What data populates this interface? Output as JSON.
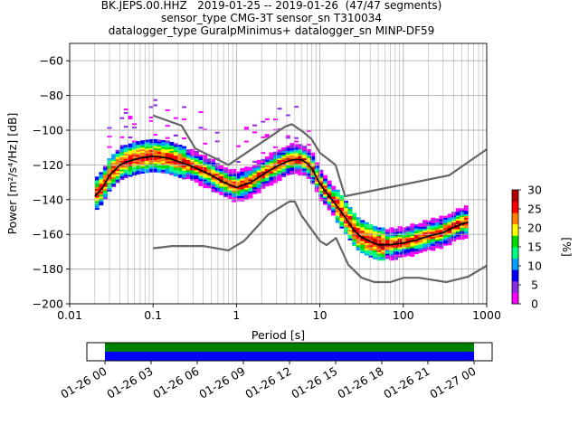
{
  "title": {
    "line1": "BK.JEPS.00.HHZ   2019-01-25 -- 2019-01-26  (47/47 segments)",
    "line2": "sensor_type CMG-3T sensor_sn T310034",
    "line3": "datalogger_type GuralpMinimus+ datalogger_sn MINP-DF59"
  },
  "chart_data": {
    "type": "heatmap",
    "xlabel": "Period [s]",
    "ylabel": "Power [m²/s⁴/Hz] [dB]",
    "x_scale": "log",
    "xlim": [
      0.01,
      1000
    ],
    "ylim": [
      -200,
      -50
    ],
    "x_tick_labels": [
      "0.01",
      "0.1",
      "1",
      "10",
      "100",
      "1000"
    ],
    "y_ticks": [
      -200,
      -180,
      -160,
      -140,
      -120,
      -100,
      -80,
      -60
    ],
    "grid": true,
    "colorbar": {
      "label": "[%]",
      "range": [
        0,
        30
      ],
      "ticks": [
        0,
        5,
        10,
        15,
        20,
        25,
        30
      ]
    },
    "series": [
      {
        "name": "",
        "role": "mean PSD",
        "color": "#000000",
        "points": [
          [
            0.02,
            -138
          ],
          [
            0.025,
            -133
          ],
          [
            0.03,
            -126
          ],
          [
            0.04,
            -120
          ],
          [
            0.05,
            -118
          ],
          [
            0.07,
            -116
          ],
          [
            0.1,
            -115
          ],
          [
            0.15,
            -116
          ],
          [
            0.2,
            -118
          ],
          [
            0.3,
            -121
          ],
          [
            0.5,
            -126
          ],
          [
            0.7,
            -130
          ],
          [
            1,
            -133
          ],
          [
            1.5,
            -130
          ],
          [
            2,
            -126
          ],
          [
            3,
            -121
          ],
          [
            4,
            -118
          ],
          [
            5,
            -117
          ],
          [
            6,
            -117
          ],
          [
            7,
            -119
          ],
          [
            8,
            -122
          ],
          [
            10,
            -131
          ],
          [
            15,
            -142
          ],
          [
            20,
            -150
          ],
          [
            25,
            -157
          ],
          [
            30,
            -161
          ],
          [
            40,
            -164
          ],
          [
            50,
            -166
          ],
          [
            70,
            -166
          ],
          [
            100,
            -165
          ],
          [
            150,
            -163
          ],
          [
            200,
            -161
          ],
          [
            300,
            -159
          ],
          [
            400,
            -156
          ],
          [
            500,
            -154
          ],
          [
            600,
            -153
          ]
        ]
      },
      {
        "name": "",
        "role": "New High Noise Model",
        "color": "#666666",
        "points": [
          [
            0.1,
            -91.5
          ],
          [
            0.22,
            -97.4
          ],
          [
            0.32,
            -110.5
          ],
          [
            0.8,
            -120
          ],
          [
            3.8,
            -98
          ],
          [
            4.6,
            -96.5
          ],
          [
            6.3,
            -101
          ],
          [
            7.9,
            -105
          ],
          [
            10,
            -113
          ],
          [
            15.4,
            -120
          ],
          [
            20,
            -138
          ],
          [
            354.8,
            -126
          ],
          [
            1000,
            -111
          ]
        ]
      },
      {
        "name": "",
        "role": "New Low Noise Model",
        "color": "#666666",
        "points": [
          [
            0.1,
            -168
          ],
          [
            0.17,
            -166.7
          ],
          [
            0.4,
            -166.7
          ],
          [
            0.8,
            -169.2
          ],
          [
            1.24,
            -163.7
          ],
          [
            2.4,
            -148.6
          ],
          [
            4.3,
            -141.1
          ],
          [
            5,
            -141.1
          ],
          [
            6,
            -149
          ],
          [
            10,
            -163.8
          ],
          [
            12,
            -166.2
          ],
          [
            15.6,
            -162.1
          ],
          [
            21.9,
            -177.5
          ],
          [
            31.6,
            -185
          ],
          [
            45,
            -187.5
          ],
          [
            70,
            -187.5
          ],
          [
            101,
            -185
          ],
          [
            154,
            -185
          ],
          [
            328,
            -187.5
          ],
          [
            600,
            -184.4
          ],
          [
            1000,
            -178
          ]
        ]
      }
    ],
    "density_color_stops": [
      "#ffffff",
      "#ff00ff",
      "#8a2be2",
      "#0000ff",
      "#00a0ff",
      "#00ff80",
      "#00dd00",
      "#ffff00",
      "#ff8000",
      "#ff0000",
      "#b00000"
    ]
  },
  "timeline": {
    "tick_labels": [
      "01-26 00",
      "01-26 03",
      "01-26 06",
      "01-26 09",
      "01-26 12",
      "01-26 15",
      "01-26 18",
      "01-26 21",
      "01-27 00"
    ],
    "bands": [
      {
        "role": "data",
        "color": "#008000"
      },
      {
        "role": "segments",
        "color": "#0000ff"
      }
    ]
  }
}
